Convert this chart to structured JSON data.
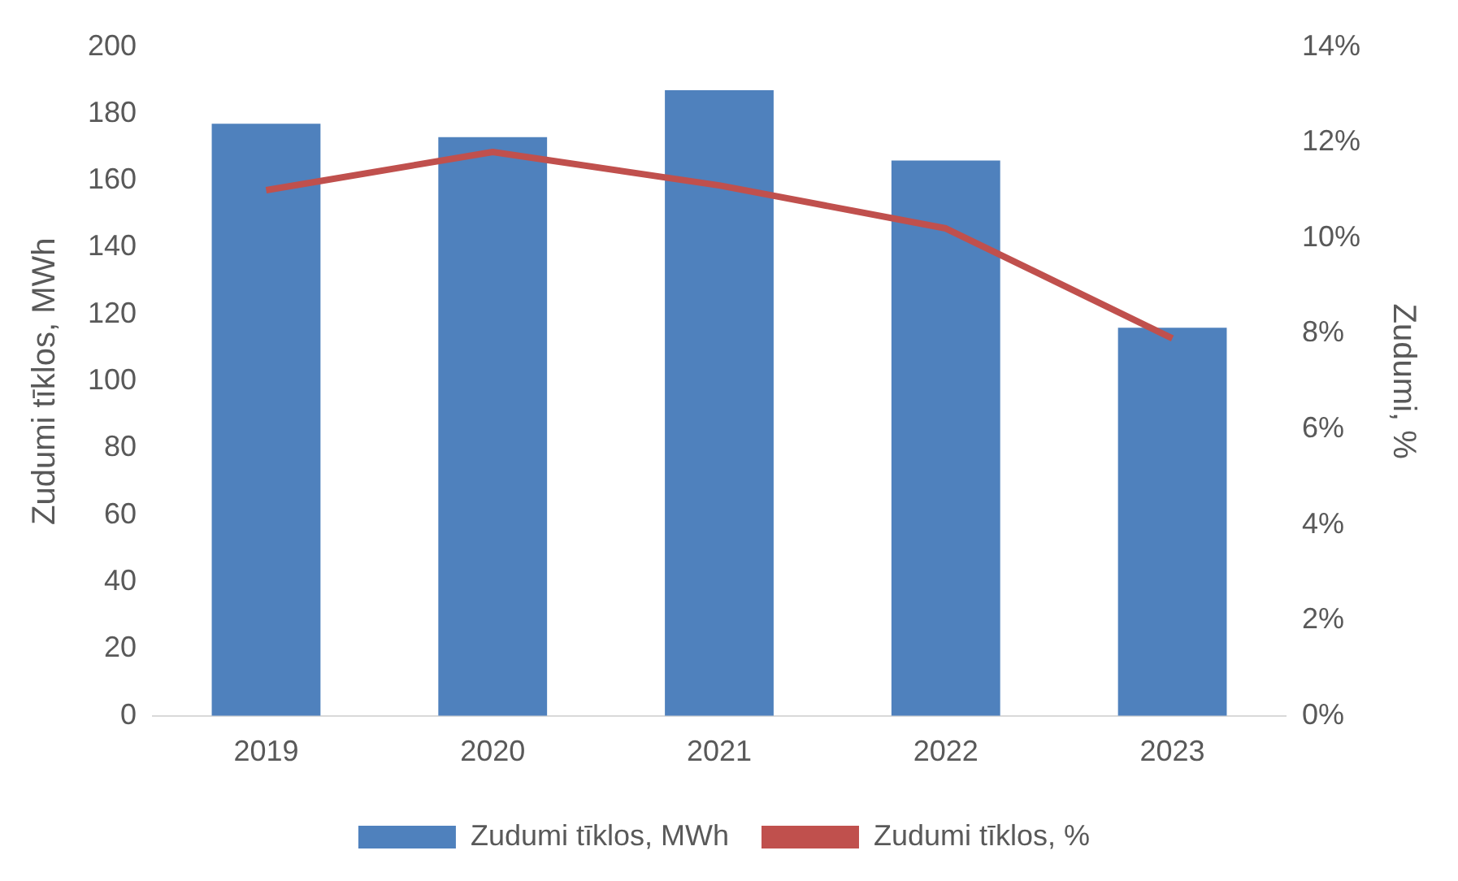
{
  "chart_data": {
    "type": "bar",
    "categories": [
      "2019",
      "2020",
      "2021",
      "2022",
      "2023"
    ],
    "series": [
      {
        "name": "Zudumi tīklos, MWh",
        "color": "#4f81bd",
        "values": [
          177,
          173,
          187,
          166,
          116
        ]
      },
      {
        "name": "Zudumi tīklos, %",
        "type": "line",
        "axis": "y2",
        "color": "#c0504d",
        "values": [
          11.0,
          11.8,
          11.1,
          10.2,
          7.9
        ]
      }
    ],
    "ylabel": "Zudumi tīklos, MWh",
    "y2label": "Zudumi, %",
    "ylim": [
      0,
      200
    ],
    "yticks": [
      0,
      20,
      40,
      60,
      80,
      100,
      120,
      140,
      160,
      180,
      200
    ],
    "y2lim": [
      0,
      14
    ],
    "y2ticks": [
      {
        "value": 0,
        "label": "0%"
      },
      {
        "value": 2,
        "label": "2%"
      },
      {
        "value": 4,
        "label": "4%"
      },
      {
        "value": 6,
        "label": "6%"
      },
      {
        "value": 8,
        "label": "8%"
      },
      {
        "value": 10,
        "label": "10%"
      },
      {
        "value": 12,
        "label": "12%"
      },
      {
        "value": 14,
        "label": "14%"
      }
    ],
    "grid": false,
    "legend": "bottom",
    "marker": "none",
    "line_style": "solid"
  }
}
